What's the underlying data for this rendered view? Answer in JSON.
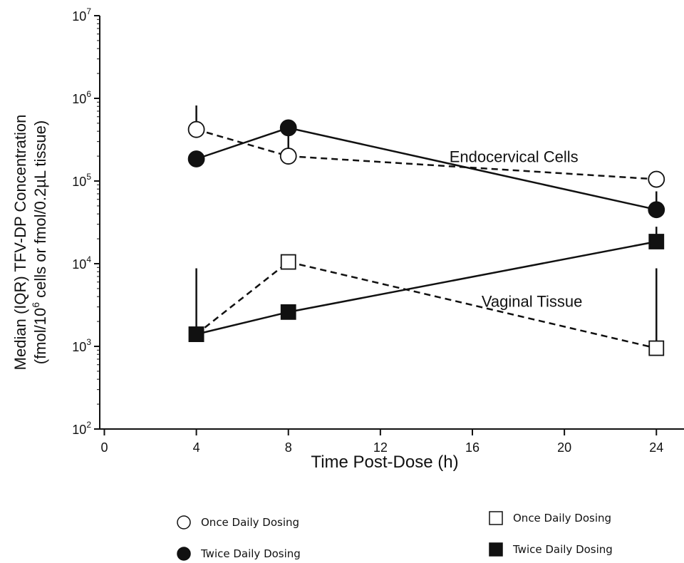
{
  "chart_data": {
    "type": "line",
    "xlabel": "Time Post-Dose (h)",
    "ylabel_line1": "Median (IQR) TFV-DP Concentration",
    "ylabel_line2_parts": [
      "(fmol/10",
      "6",
      " cells or fmol/0.2µL tissue)"
    ],
    "x_ticks": [
      0,
      4,
      8,
      12,
      16,
      20,
      24
    ],
    "xlim": [
      -0.2,
      25.2
    ],
    "y_scale": "log",
    "ylim": [
      100,
      10000000
    ],
    "y_tick_exponents": [
      2,
      3,
      4,
      5,
      6,
      7
    ],
    "y_tick_base": "10",
    "grid": false,
    "annotations": [
      {
        "text": "Endocervical Cells",
        "x": 15,
        "y": 170000
      },
      {
        "text": "Vaginal Tissue",
        "x": 16.4,
        "y": 3000
      }
    ],
    "series": [
      {
        "key": "cells-once",
        "group": "Endocervical Cells",
        "marker": "circle",
        "filled": false,
        "dash": true,
        "x": [
          4,
          8,
          24
        ],
        "values": [
          420000,
          200000,
          105000
        ],
        "errors": [
          {
            "x": 4,
            "from": 420000,
            "to": 820000
          },
          {
            "x": 8,
            "from": 200000,
            "to": 430000
          }
        ]
      },
      {
        "key": "cells-twice",
        "group": "Endocervical Cells",
        "marker": "circle",
        "filled": true,
        "dash": false,
        "x": [
          4,
          8,
          24
        ],
        "values": [
          185000,
          440000,
          45000
        ],
        "errors": [
          {
            "x": 24,
            "from": 45000,
            "to": 75000
          }
        ]
      },
      {
        "key": "tissue-once",
        "group": "Vaginal Tissue",
        "marker": "square",
        "filled": false,
        "dash": true,
        "x": [
          4,
          8,
          24
        ],
        "values": [
          1400,
          10500,
          950
        ],
        "errors": [
          {
            "x": 24,
            "from": 950,
            "to": 8800
          }
        ]
      },
      {
        "key": "tissue-twice",
        "group": "Vaginal Tissue",
        "marker": "square",
        "filled": true,
        "dash": false,
        "x": [
          4,
          8,
          24
        ],
        "values": [
          1400,
          2600,
          18500
        ],
        "errors": [
          {
            "x": 4,
            "from": 1400,
            "to": 8800
          },
          {
            "x": 24,
            "from": 18500,
            "to": 28000
          }
        ]
      }
    ],
    "legend": {
      "placement": "bottom",
      "entries": [
        {
          "marker": "circle",
          "filled": false,
          "label": "Once Daily Dosing"
        },
        {
          "marker": "circle",
          "filled": true,
          "label": "Twice Daily Dosing"
        },
        {
          "marker": "square",
          "filled": false,
          "label": "Once Daily Dosing"
        },
        {
          "marker": "square",
          "filled": true,
          "label": "Twice Daily Dosing"
        }
      ]
    }
  }
}
